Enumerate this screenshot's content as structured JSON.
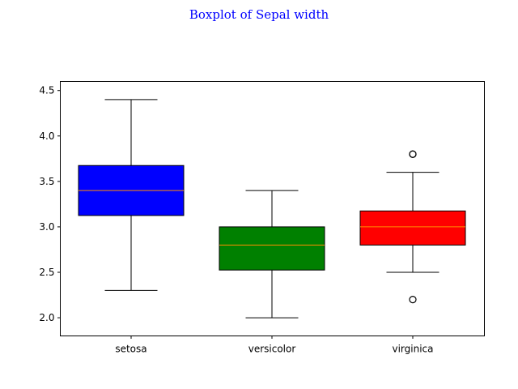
{
  "chart_data": {
    "type": "boxplot",
    "title": "Boxplot of Sepal width",
    "title_color": "#0000ff",
    "xlabel": "",
    "ylabel": "",
    "ylim": [
      1.8,
      4.6
    ],
    "yticks": [
      "2.0",
      "2.5",
      "3.0",
      "3.5",
      "4.0",
      "4.5"
    ],
    "grid": false,
    "legend": "none",
    "categories": [
      "setosa",
      "versicolor",
      "virginica"
    ],
    "boxes": [
      {
        "category": "setosa",
        "color": "#0000ff",
        "whisker_low": 2.3,
        "q1": 3.125,
        "median": 3.4,
        "q3": 3.675,
        "whisker_high": 4.4,
        "outliers": []
      },
      {
        "category": "versicolor",
        "color": "#008000",
        "whisker_low": 2.0,
        "q1": 2.525,
        "median": 2.8,
        "q3": 3.0,
        "whisker_high": 3.4,
        "outliers": []
      },
      {
        "category": "virginica",
        "color": "#ff0000",
        "whisker_low": 2.5,
        "q1": 2.8,
        "median": 3.0,
        "q3": 3.175,
        "whisker_high": 3.6,
        "outliers": [
          3.8,
          3.8,
          2.2
        ]
      }
    ],
    "median_color": "#ff8c00"
  }
}
